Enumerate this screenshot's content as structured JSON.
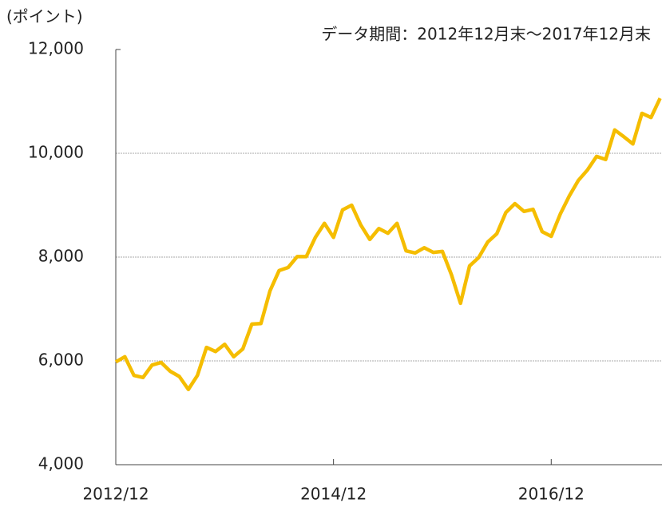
{
  "chart_data": {
    "type": "line",
    "unit_label": "(ポイント)",
    "subtitle": "データ期間：2012年12月末～2017年12月末",
    "categories": [
      "2012/12",
      null,
      null,
      null,
      null,
      null,
      null,
      null,
      null,
      null,
      null,
      null,
      null,
      null,
      null,
      null,
      null,
      null,
      null,
      null,
      null,
      null,
      null,
      null,
      "2014/12",
      null,
      null,
      null,
      null,
      null,
      null,
      null,
      null,
      null,
      null,
      null,
      null,
      null,
      null,
      null,
      null,
      null,
      null,
      null,
      null,
      null,
      null,
      null,
      "2016/12",
      null,
      null,
      null,
      null,
      null,
      null,
      null,
      null,
      null,
      null,
      null,
      null
    ],
    "series": [
      {
        "color": "#f5bd00",
        "values": [
          5980,
          6080,
          5720,
          5680,
          5920,
          5970,
          5800,
          5700,
          5450,
          5720,
          6260,
          6180,
          6320,
          6080,
          6230,
          6710,
          6720,
          7350,
          7740,
          7800,
          8010,
          8010,
          8380,
          8650,
          8380,
          8910,
          9000,
          8620,
          8340,
          8550,
          8460,
          8650,
          8120,
          8080,
          8180,
          8090,
          8110,
          7660,
          7110,
          7830,
          7990,
          8290,
          8450,
          8860,
          9030,
          8880,
          8920,
          8490,
          8400,
          8830,
          9180,
          9480,
          9680,
          9940,
          9880,
          10450,
          10320,
          10180,
          10770,
          10690,
          11060
        ]
      }
    ],
    "ylim": [
      4000,
      12000
    ],
    "yticks": [
      {
        "value": 4000,
        "label": "4,000"
      },
      {
        "value": 6000,
        "label": "6,000"
      },
      {
        "value": 8000,
        "label": "8,000"
      },
      {
        "value": 10000,
        "label": "10,000"
      },
      {
        "value": 12000,
        "label": "12,000"
      }
    ],
    "grid": true
  }
}
